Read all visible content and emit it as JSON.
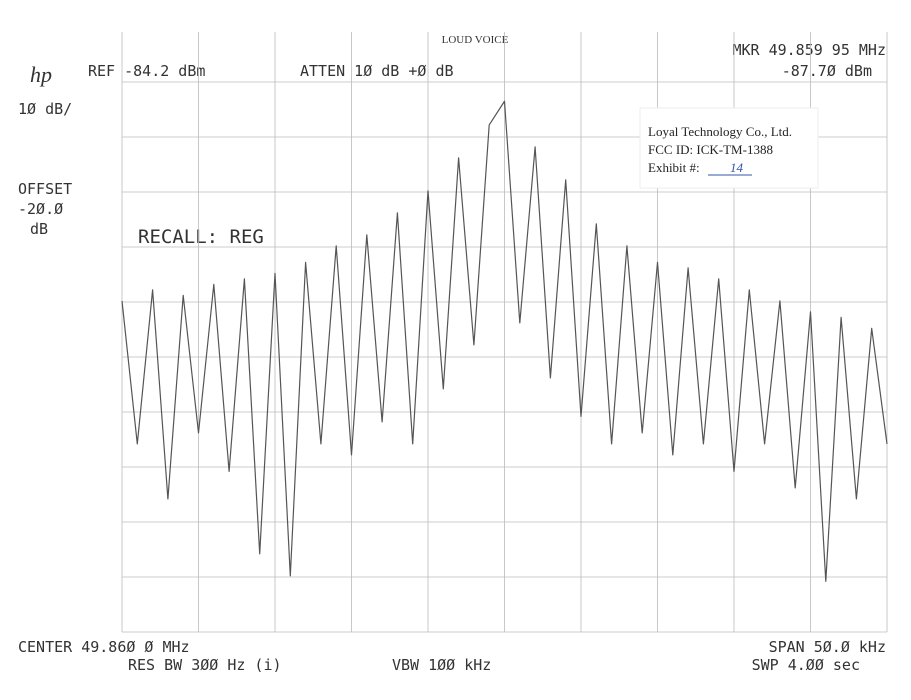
{
  "chart_data": {
    "type": "line",
    "title": "LOUD VOICE",
    "logo": "hp",
    "header_left": "REF -84.2 dBm",
    "header_mid": "ATTEN 1Ø dB +Ø dB",
    "marker_freq": "MKR 49.859 95 MHz",
    "marker_level": "-87.7Ø dBm",
    "scale": "1Ø dB/",
    "offset_label": "OFFSET",
    "offset_value": "-2Ø.Ø",
    "offset_unit": "dB",
    "recall": "RECALL:  REG",
    "stamp": {
      "company": "Loyal Technology Co., Ltd.",
      "fcc_id": "FCC ID: ICK-TM-1388",
      "exhibit": "Exhibit #:",
      "exhibit_no": "14"
    },
    "footer_center": "CENTER 49.86Ø Ø MHz",
    "footer_span": "SPAN 5Ø.Ø kHz",
    "footer_rbw": "RES BW 3ØØ  Hz (i)",
    "footer_vbw": "VBW 1ØØ kHz",
    "footer_swp": "SWP 4.ØØ  sec",
    "color": "#555555",
    "xlim": [
      49.835,
      49.885
    ],
    "ylim": [
      -184.2,
      -84.2
    ],
    "x": [
      49.835,
      49.836,
      49.837,
      49.838,
      49.839,
      49.84,
      49.841,
      49.842,
      49.843,
      49.844,
      49.845,
      49.846,
      49.847,
      49.848,
      49.849,
      49.85,
      49.851,
      49.852,
      49.853,
      49.854,
      49.855,
      49.856,
      49.857,
      49.858,
      49.859,
      49.86,
      49.861,
      49.862,
      49.863,
      49.864,
      49.865,
      49.866,
      49.867,
      49.868,
      49.869,
      49.87,
      49.871,
      49.872,
      49.873,
      49.874,
      49.875,
      49.876,
      49.877,
      49.878,
      49.879,
      49.88,
      49.881,
      49.882,
      49.883,
      49.884,
      49.885
    ],
    "values": [
      -124,
      -150,
      -122,
      -160,
      -123,
      -148,
      -121,
      -155,
      -120,
      -170,
      -119,
      -174,
      -117,
      -150,
      -114,
      -152,
      -112,
      -146,
      -108,
      -150,
      -104,
      -140,
      -98,
      -132,
      -92,
      -87.7,
      -128,
      -96,
      -138,
      -102,
      -145,
      -110,
      -150,
      -114,
      -148,
      -117,
      -152,
      -118,
      -150,
      -120,
      -155,
      -122,
      -150,
      -124,
      -158,
      -126,
      -175,
      -127,
      -160,
      -129,
      -150
    ]
  }
}
